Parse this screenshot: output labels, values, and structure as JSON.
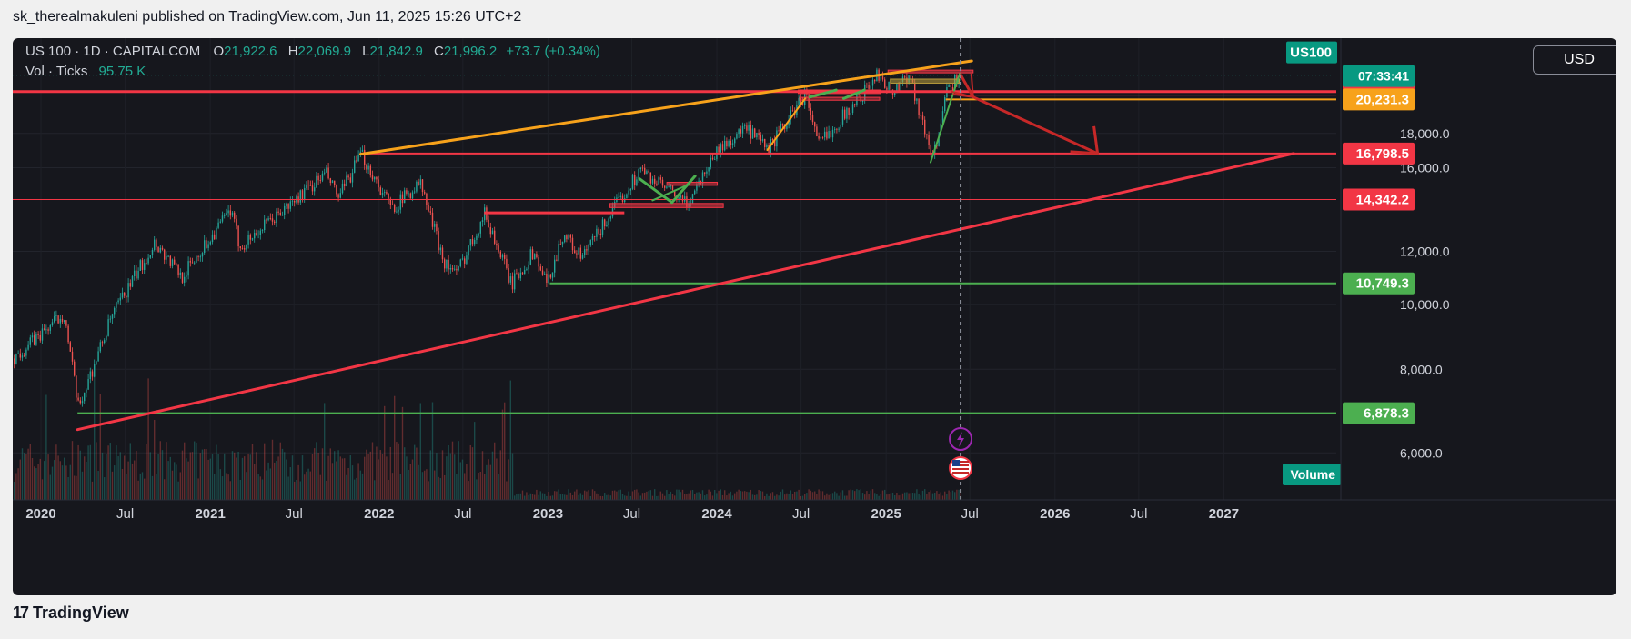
{
  "caption": "sk_therealmakuleni published on TradingView.com, Jun 11, 2025 15:26 UTC+2",
  "legend": {
    "symbol": "US 100 · 1D · CAPITALCOM",
    "o_label": "O",
    "o": "21,922.6",
    "h_label": "H",
    "h": "22,069.9",
    "l_label": "L",
    "l": "21,842.9",
    "c_label": "C",
    "c": "21,996.2",
    "change": "+73.7 (+0.34%)",
    "vol_label": "Vol · Ticks",
    "vol": "95.75 K"
  },
  "currency": "USD",
  "footer_brand": "TradingView",
  "colors": {
    "background": "#16171d",
    "up": "#26a69a",
    "down": "#ef5350",
    "orange": "#f7a21b",
    "red_line": "#f23645",
    "green_line": "#4caf50",
    "bright_green": "#4cb050",
    "purple": "#9c27b0"
  },
  "chart_data": {
    "type": "candlestick",
    "xlim": [
      "2019-11-01",
      "2027-09-01"
    ],
    "ylim": [
      5400,
      23100
    ],
    "yscale": "log",
    "y_ticks": [
      "18,000.0",
      "16,000.0",
      "12,000.0",
      "10,000.0",
      "8,000.0",
      "6,000.0"
    ],
    "x_ticks": [
      "2020",
      "Jul",
      "2021",
      "Jul",
      "2022",
      "Jul",
      "2023",
      "Jul",
      "2024",
      "Jul",
      "2025",
      "Jul",
      "2026",
      "Jul",
      "2027"
    ],
    "symbol_tag": "US100",
    "last_price": 21996.2,
    "countdown": "07:33:41",
    "volume_tag": "Volume",
    "current_date": "2025-06-11",
    "price_series": [
      [
        "2019-11-01",
        8300
      ],
      [
        "2020-02-19",
        9700
      ],
      [
        "2020-03-20",
        7000
      ],
      [
        "2020-06-01",
        9600
      ],
      [
        "2020-09-02",
        12400
      ],
      [
        "2020-10-30",
        11000
      ],
      [
        "2021-02-12",
        13800
      ],
      [
        "2021-03-05",
        12200
      ],
      [
        "2021-06-01",
        13700
      ],
      [
        "2021-09-07",
        15700
      ],
      [
        "2021-10-04",
        14400
      ],
      [
        "2021-11-22",
        16760
      ],
      [
        "2022-01-27",
        13900
      ],
      [
        "2022-03-29",
        15200
      ],
      [
        "2022-05-20",
        11600
      ],
      [
        "2022-06-16",
        11100
      ],
      [
        "2022-08-16",
        13700
      ],
      [
        "2022-10-13",
        10700
      ],
      [
        "2022-11-30",
        12000
      ],
      [
        "2022-12-28",
        10700
      ],
      [
        "2023-02-02",
        12800
      ],
      [
        "2023-03-13",
        11700
      ],
      [
        "2023-05-01",
        13200
      ],
      [
        "2023-07-18",
        15900
      ],
      [
        "2023-10-26",
        14100
      ],
      [
        "2023-12-28",
        16900
      ],
      [
        "2024-03-01",
        18300
      ],
      [
        "2024-04-19",
        17000
      ],
      [
        "2024-07-10",
        20700
      ],
      [
        "2024-08-05",
        17300
      ],
      [
        "2024-09-06",
        18300
      ],
      [
        "2024-12-16",
        22100
      ],
      [
        "2025-01-13",
        20700
      ],
      [
        "2025-02-19",
        22200
      ],
      [
        "2025-03-13",
        19300
      ],
      [
        "2025-04-07",
        16800
      ],
      [
        "2025-04-21",
        17600
      ],
      [
        "2025-05-13",
        21000
      ],
      [
        "2025-06-11",
        21996
      ]
    ],
    "price_tags": [
      {
        "value": 20788.8,
        "label": "20,788.8",
        "color": "#f23645"
      },
      {
        "value": 20539.8,
        "label": "20,539.8",
        "color": "#f23645"
      },
      {
        "value": 20231.3,
        "label": "20,231.3",
        "color": "#f7a21b"
      },
      {
        "value": 16798.5,
        "label": "16,798.5",
        "color": "#f23645"
      },
      {
        "value": 14342.2,
        "label": "14,342.2",
        "color": "#f23645"
      },
      {
        "value": 10749.3,
        "label": "10,749.3",
        "color": "#4caf50"
      },
      {
        "value": 6878.3,
        "label": "6,878.3",
        "color": "#4caf50"
      }
    ],
    "drawings": {
      "horizontal_lines": [
        {
          "value": 20788.8,
          "from": "2019-11-01",
          "to": "2027-09-01",
          "color": "#f23645",
          "width": 3
        },
        {
          "value": 16798.5,
          "from": "2021-11-22",
          "to": "2027-09-01",
          "color": "#f23645",
          "width": 2
        },
        {
          "value": 14342.2,
          "from": "2019-11-01",
          "to": "2027-09-01",
          "color": "#f23645",
          "width": 1
        },
        {
          "value": 10749.3,
          "from": "2023-01-05",
          "to": "2027-09-01",
          "color": "#4caf50",
          "width": 2
        },
        {
          "value": 6878.3,
          "from": "2020-03-20",
          "to": "2027-09-01",
          "color": "#4caf50",
          "width": 2
        },
        {
          "value": 20231.3,
          "from": "2025-05-10",
          "to": "2027-09-01",
          "color": "#f7a21b",
          "width": 2
        },
        {
          "value": 20539.8,
          "from": "2025-05-10",
          "to": "2027-09-01",
          "color": "#f23645",
          "width": 1
        },
        {
          "value": 13700,
          "from": "2022-08-16",
          "to": "2023-06-15",
          "color": "#f23645",
          "width": 3
        }
      ],
      "trend_lines": [
        {
          "from": [
            "2021-11-22",
            16760
          ],
          "to": [
            "2025-07-05",
            23100
          ],
          "color": "#f7a21b",
          "width": 3
        },
        {
          "from": [
            "2020-03-20",
            6500
          ],
          "to": [
            "2027-06-01",
            16800
          ],
          "color": "#f23645",
          "width": 3
        },
        {
          "from": [
            "2024-04-19",
            17000
          ],
          "to": [
            "2024-07-10",
            20300
          ],
          "color": "#f7a21b",
          "width": 2
        },
        {
          "from": [
            "2025-04-07",
            16300
          ],
          "to": [
            "2025-06-09",
            22100
          ],
          "color": "#4caf50",
          "width": 2
        },
        {
          "from": [
            "2023-07-18",
            15400
          ],
          "to": [
            "2023-09-26",
            14200
          ],
          "color": "#4caf50",
          "width": 3
        },
        {
          "from": [
            "2023-09-26",
            14200
          ],
          "to": [
            "2023-11-15",
            15550
          ],
          "color": "#4caf50",
          "width": 3
        },
        {
          "from": [
            "2023-08-15",
            14300
          ],
          "to": [
            "2023-11-01",
            15100
          ],
          "color": "#4caf50",
          "width": 2
        },
        {
          "from": [
            "2024-07-20",
            20400
          ],
          "to": [
            "2024-09-15",
            20900
          ],
          "color": "#4caf50",
          "width": 3
        },
        {
          "from": [
            "2024-10-01",
            20300
          ],
          "to": [
            "2024-11-15",
            20900
          ],
          "color": "#4caf50",
          "width": 3
        }
      ],
      "rectangles": [
        {
          "from": [
            "2023-05-15",
            14150
          ],
          "to": [
            "2024-01-15",
            13950
          ],
          "fill": "rgba(242,54,69,0.55)",
          "stroke": "#f23645"
        },
        {
          "from": [
            "2023-09-15",
            15220
          ],
          "to": [
            "2024-01-02",
            15060
          ],
          "fill": "rgba(242,54,69,0.55)",
          "stroke": "#f23645"
        },
        {
          "from": [
            "2024-06-25",
            20900
          ],
          "to": [
            "2024-12-20",
            20650
          ],
          "fill": "rgba(242,54,69,0.55)",
          "stroke": "#f23645"
        },
        {
          "from": [
            "2024-06-28",
            20380
          ],
          "to": [
            "2024-12-18",
            20180
          ],
          "fill": "rgba(242,54,69,0.45)",
          "stroke": "#f23645"
        },
        {
          "from": [
            "2025-01-05",
            22380
          ],
          "to": [
            "2025-07-08",
            22200
          ],
          "fill": "rgba(242,54,69,0.55)",
          "stroke": "#f23645"
        },
        {
          "from": [
            "2025-01-10",
            21700
          ],
          "to": [
            "2025-06-08",
            21400
          ],
          "fill": "rgba(190,160,60,0.55)",
          "stroke": "#b89b3c"
        }
      ],
      "arrows": [
        {
          "points": [
            [
              "2025-06-10",
              22100
            ],
            [
              "2025-07-08",
              20400
            ],
            [
              "2026-04-03",
              16800
            ]
          ],
          "color": "#c62828",
          "width": 3
        },
        {
          "points": [
            [
              "2025-05-25",
              20600
            ],
            [
              "2025-07-08",
              20400
            ]
          ],
          "color": "#c62828",
          "width": 2
        }
      ]
    }
  }
}
